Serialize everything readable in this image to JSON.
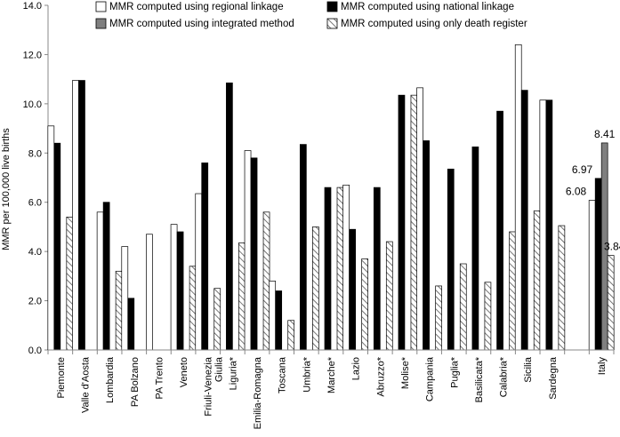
{
  "chart_data": {
    "type": "bar",
    "ylabel": "MMR per 100,000 live births",
    "xlabel": "",
    "ylim": [
      0,
      14
    ],
    "yticks": [
      "0.0",
      "2.0",
      "4.0",
      "6.0",
      "8.0",
      "10.0",
      "12.0",
      "14.0"
    ],
    "grid": false,
    "legend_position": "top",
    "categories": [
      "Piemonte",
      "Valle d'Aosta",
      "Lombardia",
      "PA Bolzano",
      "PA Trento",
      "Veneto",
      "Friuli-Venezia Giulia",
      "Liguria*",
      "Emilia-Romagna",
      "Toscana",
      "Umbria*",
      "Marche*",
      "Lazio",
      "Abruzzo*",
      "Molise*",
      "Campania",
      "Puglia*",
      "Basilicata*",
      "Calabria*",
      "Sicilia",
      "Sardegna",
      "",
      "Italy"
    ],
    "series": [
      {
        "name": "MMR computed using regional linkage",
        "color": "#ffffff",
        "pattern": "none",
        "values": [
          9.1,
          10.95,
          5.6,
          4.2,
          4.7,
          5.1,
          6.35,
          null,
          8.1,
          2.8,
          null,
          null,
          6.7,
          null,
          null,
          10.65,
          null,
          null,
          null,
          12.4,
          10.15,
          null,
          6.08
        ]
      },
      {
        "name": "MMR computed using national linkage",
        "color": "#000000",
        "pattern": "none",
        "values": [
          8.4,
          10.95,
          6.0,
          2.1,
          null,
          4.8,
          7.6,
          10.85,
          7.8,
          2.4,
          8.35,
          6.6,
          4.9,
          6.6,
          10.35,
          8.5,
          7.35,
          8.25,
          9.7,
          10.55,
          10.15,
          null,
          6.97
        ]
      },
      {
        "name": "MMR computed using integrated method",
        "color": "#7f7f7f",
        "pattern": "none",
        "values": [
          null,
          null,
          null,
          null,
          null,
          null,
          null,
          null,
          null,
          null,
          null,
          null,
          null,
          null,
          null,
          null,
          null,
          null,
          null,
          null,
          null,
          null,
          8.41
        ]
      },
      {
        "name": "MMR computed using only death register",
        "color": "#ffffff",
        "pattern": "hatch",
        "values": [
          5.4,
          null,
          3.2,
          null,
          null,
          3.4,
          2.5,
          4.35,
          5.6,
          1.2,
          5.0,
          6.6,
          3.7,
          4.4,
          10.35,
          2.6,
          3.5,
          2.75,
          4.8,
          5.65,
          5.05,
          null,
          3.84
        ]
      }
    ],
    "data_labels": [
      {
        "series": 0,
        "category": 22,
        "text": "6.08"
      },
      {
        "series": 1,
        "category": 22,
        "text": "6.97"
      },
      {
        "series": 2,
        "category": 22,
        "text": "8.41"
      },
      {
        "series": 3,
        "category": 22,
        "text": "3.84"
      }
    ]
  }
}
